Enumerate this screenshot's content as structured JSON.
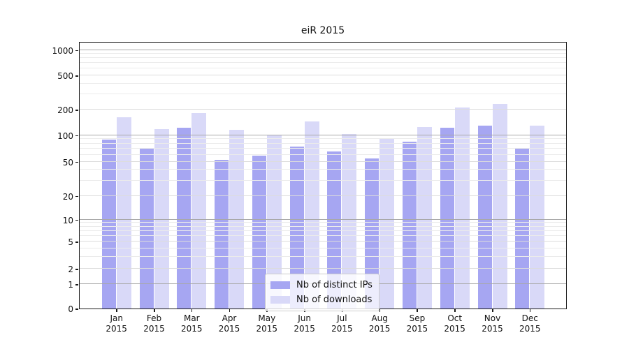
{
  "chart_data": {
    "type": "bar",
    "title": "eiR 2015",
    "categories": [
      "Jan",
      "Feb",
      "Mar",
      "Apr",
      "May",
      "Jun",
      "Jul",
      "Aug",
      "Sep",
      "Oct",
      "Nov",
      "Dec"
    ],
    "x_year": "2015",
    "series": [
      {
        "name": "Nb of distinct IPs",
        "color": "#a6a6f2",
        "values": [
          89,
          70,
          122,
          52,
          58,
          74,
          65,
          54,
          84,
          122,
          129,
          70
        ]
      },
      {
        "name": "Nb of downloads",
        "color": "#d9d9f8",
        "values": [
          161,
          118,
          181,
          115,
          102,
          144,
          103,
          93,
          124,
          210,
          234,
          129
        ]
      }
    ],
    "yticks": [
      0,
      1,
      2,
      5,
      10,
      20,
      50,
      100,
      200,
      500,
      1000
    ],
    "yscale": "symlog",
    "ylim": [
      0,
      1400
    ],
    "grid": true,
    "grid_on_top_of_bars": true,
    "legend_position": "lower center",
    "background_color": "#ffffff",
    "spine_color": "#1a1a1a"
  }
}
